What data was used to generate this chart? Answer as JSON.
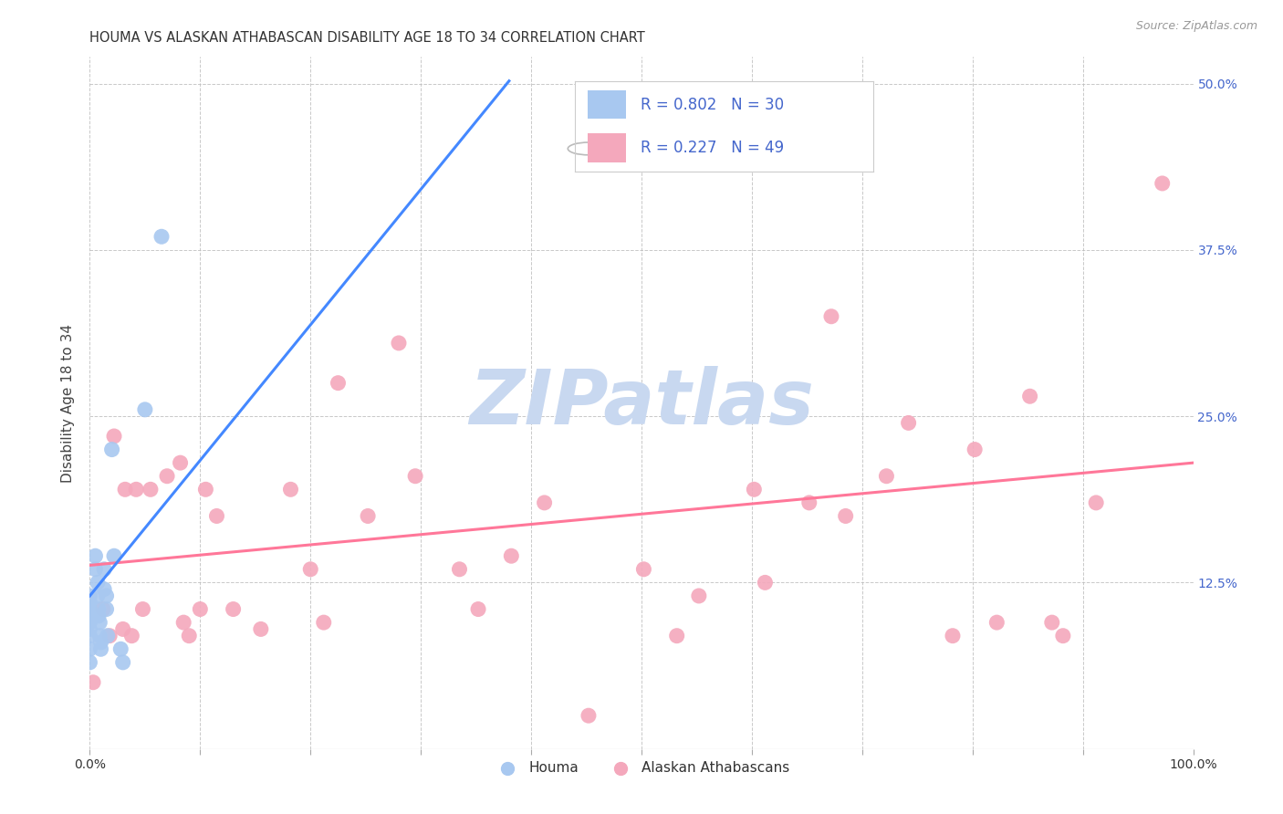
{
  "title": "HOUMA VS ALASKAN ATHABASCAN DISABILITY AGE 18 TO 34 CORRELATION CHART",
  "source": "Source: ZipAtlas.com",
  "ylabel": "Disability Age 18 to 34",
  "xlabel": "",
  "xlim": [
    0.0,
    1.0
  ],
  "ylim": [
    0.0,
    0.52
  ],
  "xticks": [
    0.0,
    0.1,
    0.2,
    0.3,
    0.4,
    0.5,
    0.6,
    0.7,
    0.8,
    0.9,
    1.0
  ],
  "yticks": [
    0.0,
    0.125,
    0.25,
    0.375,
    0.5
  ],
  "ytick_labels": [
    "",
    "12.5%",
    "25.0%",
    "37.5%",
    "50.0%"
  ],
  "xtick_labels": [
    "0.0%",
    "",
    "",
    "",
    "",
    "",
    "",
    "",
    "",
    "",
    "100.0%"
  ],
  "houma_R": 0.802,
  "houma_N": 30,
  "athabascan_R": 0.227,
  "athabascan_N": 49,
  "houma_color": "#A8C8F0",
  "athabascan_color": "#F4A8BC",
  "houma_line_color": "#4488FF",
  "athabascan_line_color": "#FF7799",
  "legend_text_color": "#4466CC",
  "watermark_color": "#C8D8F0",
  "houma_x": [
    0.0,
    0.0,
    0.0,
    0.0,
    0.0,
    0.0,
    0.0,
    0.0,
    0.0,
    0.005,
    0.005,
    0.007,
    0.007,
    0.008,
    0.008,
    0.009,
    0.009,
    0.01,
    0.01,
    0.013,
    0.013,
    0.015,
    0.015,
    0.016,
    0.02,
    0.022,
    0.028,
    0.03,
    0.05,
    0.065
  ],
  "houma_y": [
    0.115,
    0.11,
    0.105,
    0.1,
    0.095,
    0.09,
    0.085,
    0.075,
    0.065,
    0.145,
    0.135,
    0.125,
    0.115,
    0.105,
    0.1,
    0.095,
    0.085,
    0.08,
    0.075,
    0.135,
    0.12,
    0.115,
    0.105,
    0.085,
    0.225,
    0.145,
    0.075,
    0.065,
    0.255,
    0.385
  ],
  "athabascan_x": [
    0.003,
    0.012,
    0.018,
    0.022,
    0.03,
    0.032,
    0.038,
    0.042,
    0.048,
    0.055,
    0.07,
    0.082,
    0.085,
    0.09,
    0.1,
    0.105,
    0.115,
    0.13,
    0.155,
    0.182,
    0.2,
    0.212,
    0.225,
    0.252,
    0.28,
    0.295,
    0.335,
    0.352,
    0.382,
    0.412,
    0.452,
    0.502,
    0.532,
    0.552,
    0.602,
    0.612,
    0.652,
    0.672,
    0.685,
    0.722,
    0.742,
    0.782,
    0.802,
    0.822,
    0.852,
    0.872,
    0.882,
    0.912,
    0.972
  ],
  "athabascan_y": [
    0.05,
    0.105,
    0.085,
    0.235,
    0.09,
    0.195,
    0.085,
    0.195,
    0.105,
    0.195,
    0.205,
    0.215,
    0.095,
    0.085,
    0.105,
    0.195,
    0.175,
    0.105,
    0.09,
    0.195,
    0.135,
    0.095,
    0.275,
    0.175,
    0.305,
    0.205,
    0.135,
    0.105,
    0.145,
    0.185,
    0.025,
    0.135,
    0.085,
    0.115,
    0.195,
    0.125,
    0.185,
    0.325,
    0.175,
    0.205,
    0.245,
    0.085,
    0.225,
    0.095,
    0.265,
    0.095,
    0.085,
    0.185,
    0.425
  ],
  "houma_line_x0": 0.0,
  "houma_line_y0": 0.115,
  "houma_line_x1": 0.38,
  "houma_line_y1": 0.502,
  "athabascan_line_x0": 0.0,
  "athabascan_line_y0": 0.138,
  "athabascan_line_x1": 1.0,
  "athabascan_line_y1": 0.215
}
